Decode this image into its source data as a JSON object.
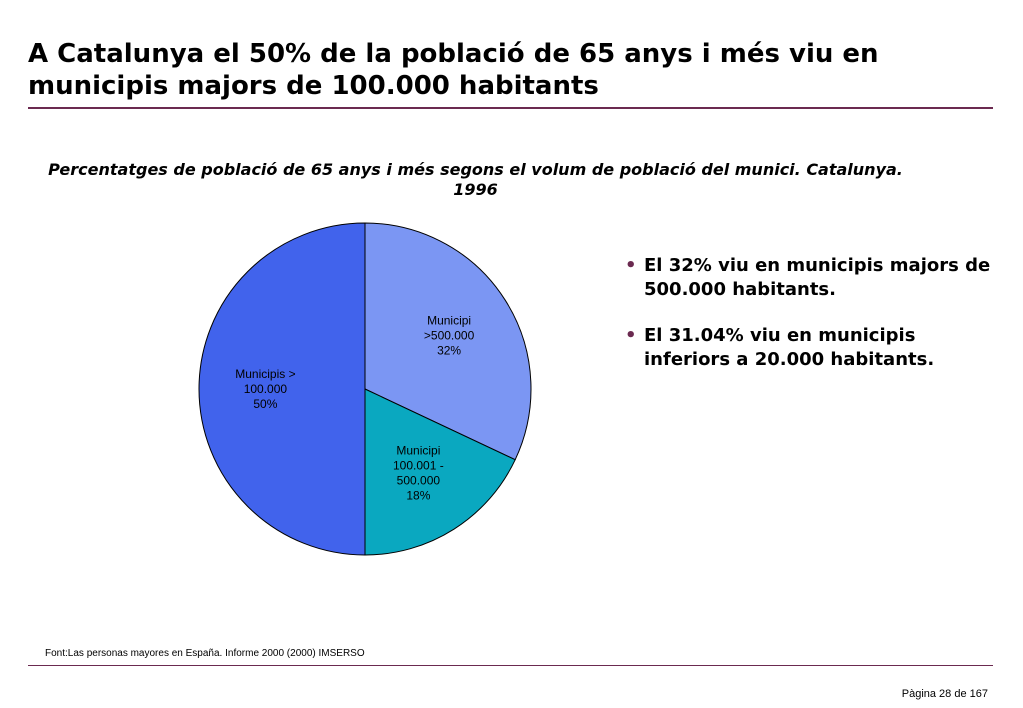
{
  "slide": {
    "title": "A Catalunya el 50% de la població de 65 anys i més viu en municipis majors de 100.000 habitants",
    "source": "Font:Las personas mayores en España. Informe 2000 (2000) IMSERSO",
    "page": "Pàgina 28 de 167",
    "accent_color": "#6b2a50"
  },
  "bullets": [
    "El 32% viu en municipis majors de 500.000 habitants.",
    "El 31.04% viu en municipis inferiors a 20.000 habitants."
  ],
  "chart_data": {
    "type": "pie",
    "title": "Percentatges de població de 65 anys i més segons el volum de població del munici. Catalunya. 1996",
    "slices": [
      {
        "label_lines": [
          "Municipi",
          ">500.000",
          "32%"
        ],
        "value": 32,
        "color": "#7b96f3"
      },
      {
        "label_lines": [
          "Municipi",
          "100.001 -",
          "500.000",
          "18%"
        ],
        "value": 18,
        "color": "#0aa8c0"
      },
      {
        "label_lines": [
          "Municipis >",
          "100.000",
          "50%"
        ],
        "value": 50,
        "color": "#4163ec"
      }
    ]
  }
}
